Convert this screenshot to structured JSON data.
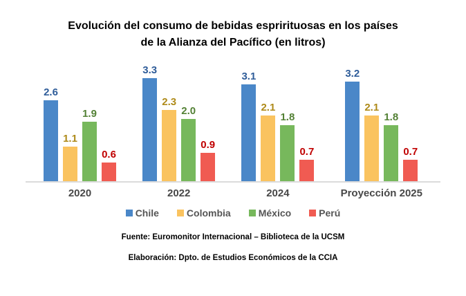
{
  "title": {
    "line1": "Evolución del consumo de bebidas esprirituosas en los países",
    "line2": "de la Alianza del Pacífico (en litros)"
  },
  "chart_data": {
    "type": "bar",
    "categories": [
      "2020",
      "2022",
      "2024",
      "Proyección 2025"
    ],
    "series": [
      {
        "name": "Chile",
        "color": "#4A87C8",
        "label_color": "#2E5C99",
        "values": [
          2.6,
          3.3,
          3.1,
          3.2
        ]
      },
      {
        "name": "Colombia",
        "color": "#FAC35F",
        "label_color": "#AE8A19",
        "values": [
          1.1,
          2.3,
          2.1,
          2.1
        ]
      },
      {
        "name": "México",
        "color": "#77B85C",
        "label_color": "#538135",
        "values": [
          1.9,
          2.0,
          1.8,
          1.8
        ]
      },
      {
        "name": "Perú",
        "color": "#F05B52",
        "label_color": "#C00000",
        "values": [
          0.6,
          0.9,
          0.7,
          0.7
        ]
      }
    ],
    "ylim": [
      0,
      3.5
    ],
    "grid": false,
    "axis_line_color": "#DBDBDB",
    "data_labels": true,
    "legend_position": "bottom",
    "xlabel": "",
    "ylabel": ""
  },
  "footer": {
    "source": "Fuente: Euromonitor Internacional – Biblioteca de la UCSM",
    "elaboration": "Elaboración: Dpto. de Estudios Económicos de la CCIA"
  }
}
